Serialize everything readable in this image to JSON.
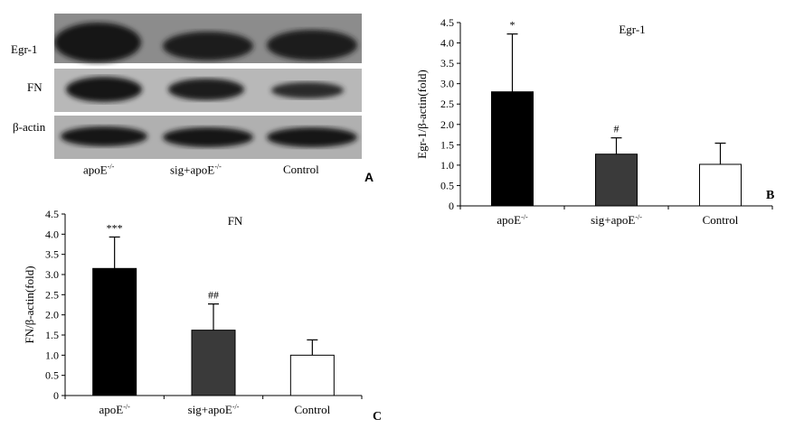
{
  "panel_A": {
    "letter": "A",
    "rows": [
      {
        "label": "Egr-1"
      },
      {
        "label": "FN"
      },
      {
        "label": "β-actin"
      }
    ],
    "lanes": [
      {
        "main": "apoE",
        "sup": "-/-"
      },
      {
        "main": "sig+apoE",
        "sup": "-/-"
      },
      {
        "main": "Control",
        "sup": ""
      }
    ]
  },
  "chart_data": [
    {
      "panel": "B",
      "type": "bar",
      "title": "Egr-1",
      "ylabel": "Egr-1/β-actin(fold)",
      "xlabel": "",
      "ylim": [
        0,
        4.5
      ],
      "yticks": [
        "0",
        "0.5",
        "1.0",
        "1.5",
        "2.0",
        "2.5",
        "3.0",
        "3.5",
        "4.0",
        "4.5"
      ],
      "categories": [
        {
          "main": "apoE",
          "sup": "-/-"
        },
        {
          "main": "sig+apoE",
          "sup": "-/-"
        },
        {
          "main": "Control",
          "sup": ""
        }
      ],
      "values": [
        2.8,
        1.27,
        1.02
      ],
      "errors": [
        1.42,
        0.4,
        0.52
      ],
      "colors": [
        "#000000",
        "#3a3a3a",
        "#ffffff"
      ],
      "annotations": [
        "*",
        "#",
        ""
      ]
    },
    {
      "panel": "C",
      "type": "bar",
      "title": "FN",
      "ylabel": "FN/β-actin(fold)",
      "xlabel": "",
      "ylim": [
        0,
        4.5
      ],
      "yticks": [
        "0",
        "0.5",
        "1.0",
        "1.5",
        "2.0",
        "2.5",
        "3.0",
        "3.5",
        "4.0",
        "4.5"
      ],
      "categories": [
        {
          "main": "apoE",
          "sup": "-/-"
        },
        {
          "main": "sig+apoE",
          "sup": "-/-"
        },
        {
          "main": "Control",
          "sup": ""
        }
      ],
      "values": [
        3.15,
        1.62,
        1.0
      ],
      "errors": [
        0.78,
        0.65,
        0.38
      ],
      "colors": [
        "#000000",
        "#3a3a3a",
        "#ffffff"
      ],
      "annotations": [
        "***",
        "##",
        ""
      ]
    }
  ]
}
